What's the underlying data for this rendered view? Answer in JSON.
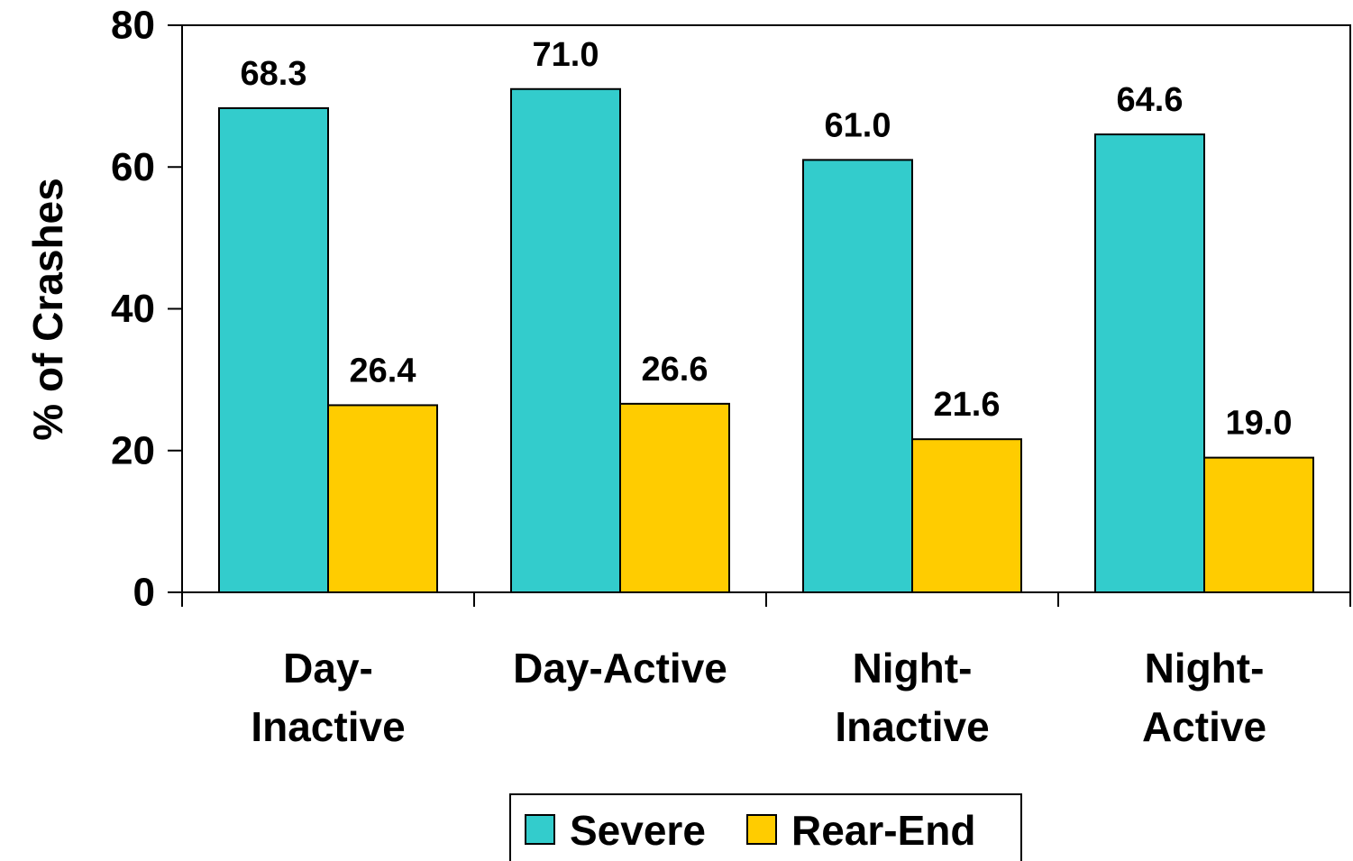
{
  "chart_data": {
    "type": "bar",
    "title": "",
    "xlabel": "",
    "ylabel": "% of Crashes",
    "ylim": [
      0,
      80
    ],
    "yticks": [
      0,
      20,
      40,
      60,
      80
    ],
    "grid": false,
    "legend_position": "bottom",
    "categories": [
      [
        "Day-",
        "Inactive"
      ],
      [
        "Day-Active"
      ],
      [
        "Night-",
        "Inactive"
      ],
      [
        "Night-",
        "Active"
      ]
    ],
    "series": [
      {
        "name": "Severe",
        "color": "#33CCCC",
        "values": [
          68.3,
          71.0,
          61.0,
          64.6
        ],
        "labels": [
          "68.3",
          "71.0",
          "61.0",
          "64.6"
        ]
      },
      {
        "name": "Rear-End",
        "color": "#FFCC00",
        "values": [
          26.4,
          26.6,
          21.6,
          19.0
        ],
        "labels": [
          "26.4",
          "26.6",
          "21.6",
          "19.0"
        ]
      }
    ]
  }
}
